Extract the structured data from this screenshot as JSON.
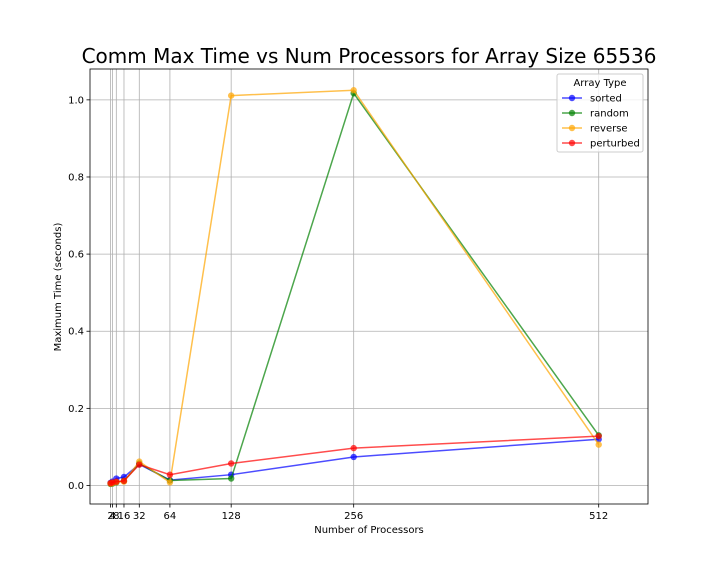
{
  "chart_data": {
    "type": "line",
    "title": "Comm Max Time vs Num Processors for Array Size 65536",
    "xlabel": "Number of Processors",
    "ylabel": "Maximum Time (seconds)",
    "x": [
      2,
      4,
      8,
      16,
      32,
      64,
      128,
      256,
      512
    ],
    "x_tick_labels": [
      "2",
      "4",
      "8",
      "16",
      "32",
      "64",
      "128",
      "256",
      "512"
    ],
    "xlim": [
      -19.5,
      563.5
    ],
    "ylim": [
      -0.048,
      1.08
    ],
    "y_ticks": [
      0.0,
      0.2,
      0.4,
      0.6,
      0.8,
      1.0
    ],
    "y_tick_labels": [
      "0.0",
      "0.2",
      "0.4",
      "0.6",
      "0.8",
      "1.0"
    ],
    "grid": true,
    "legend": {
      "title": "Array Type",
      "placement": "top-right"
    },
    "series": [
      {
        "name": "sorted",
        "color": "#0000ff",
        "values": [
          0.007,
          0.01,
          0.018,
          0.022,
          0.055,
          0.014,
          0.028,
          0.074,
          0.12
        ]
      },
      {
        "name": "random",
        "color": "#008000",
        "values": [
          0.004,
          0.005,
          0.008,
          0.012,
          0.057,
          0.013,
          0.018,
          1.017,
          0.13
        ]
      },
      {
        "name": "reverse",
        "color": "#ffa500",
        "values": [
          0.005,
          0.006,
          0.009,
          0.01,
          0.062,
          0.008,
          1.011,
          1.025,
          0.106
        ]
      },
      {
        "name": "perturbed",
        "color": "#ff0000",
        "values": [
          0.006,
          0.008,
          0.01,
          0.012,
          0.054,
          0.028,
          0.057,
          0.097,
          0.128
        ]
      }
    ]
  }
}
